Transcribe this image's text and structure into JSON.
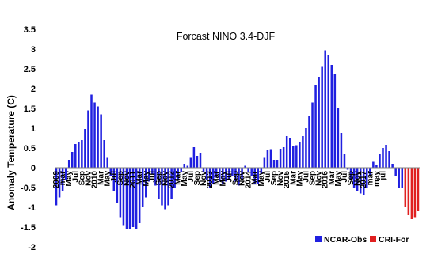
{
  "chart_data": {
    "type": "bar",
    "title": "Forcast NINO 3.4-DJF",
    "ylabel": "Anomaly Temperature (C)",
    "xlabel": "",
    "ylim": [
      -2,
      3.5
    ],
    "yticks": [
      "-2",
      "-1.5",
      "-1",
      "-0.5",
      "0",
      "0.5",
      "1",
      "1.5",
      "2",
      "2.5",
      "3",
      "3.5"
    ],
    "ytick_values": [
      -2,
      -1.5,
      -1,
      -0.5,
      0,
      0.5,
      1,
      1.5,
      2,
      2.5,
      3,
      3.5
    ],
    "grid": false,
    "legend": "bottom-right",
    "xtick_labels": [
      {
        "i": 0,
        "label": "2009"
      },
      {
        "i": 2,
        "label": "mar"
      },
      {
        "i": 4,
        "label": "May"
      },
      {
        "i": 6,
        "label": "Jul"
      },
      {
        "i": 8,
        "label": "Sep"
      },
      {
        "i": 10,
        "label": "Nov"
      },
      {
        "i": 12,
        "label": "2010"
      },
      {
        "i": 14,
        "label": "Mar"
      },
      {
        "i": 16,
        "label": "May"
      },
      {
        "i": 18,
        "label": "Jul"
      },
      {
        "i": 20,
        "label": "Sep"
      },
      {
        "i": 22,
        "label": "Nov"
      },
      {
        "i": 24,
        "label": "2011"
      },
      {
        "i": 26,
        "label": "Mar"
      },
      {
        "i": 28,
        "label": "May"
      },
      {
        "i": 30,
        "label": "Jul"
      },
      {
        "i": 32,
        "label": "Sep"
      },
      {
        "i": 34,
        "label": "Nov"
      },
      {
        "i": 36,
        "label": "2012"
      },
      {
        "i": 38,
        "label": "Mar"
      },
      {
        "i": 40,
        "label": "May"
      },
      {
        "i": 42,
        "label": "Jul"
      },
      {
        "i": 44,
        "label": "Sep"
      },
      {
        "i": 46,
        "label": "Nov"
      },
      {
        "i": 48,
        "label": "2013"
      },
      {
        "i": 50,
        "label": "Mar"
      },
      {
        "i": 52,
        "label": "May"
      },
      {
        "i": 54,
        "label": "Jul"
      },
      {
        "i": 56,
        "label": "Sep"
      },
      {
        "i": 58,
        "label": "Nov"
      },
      {
        "i": 60,
        "label": "2014"
      },
      {
        "i": 62,
        "label": "Mar"
      },
      {
        "i": 64,
        "label": "May"
      },
      {
        "i": 66,
        "label": "Jul"
      },
      {
        "i": 68,
        "label": "Sep"
      },
      {
        "i": 70,
        "label": "Nov"
      },
      {
        "i": 72,
        "label": "2015"
      },
      {
        "i": 74,
        "label": "Mar"
      },
      {
        "i": 76,
        "label": "May"
      },
      {
        "i": 78,
        "label": "Jul"
      },
      {
        "i": 80,
        "label": "Sep"
      },
      {
        "i": 82,
        "label": "Nov"
      },
      {
        "i": 84,
        "label": "2016"
      },
      {
        "i": 86,
        "label": "Mar"
      },
      {
        "i": 88,
        "label": "May"
      },
      {
        "i": 90,
        "label": "Jul"
      },
      {
        "i": 92,
        "label": "Sep"
      },
      {
        "i": 94,
        "label": "Nov"
      },
      {
        "i": 96,
        "label": "2017"
      },
      {
        "i": 98,
        "label": "mar"
      },
      {
        "i": 100,
        "label": "may"
      },
      {
        "i": 102,
        "label": "jul"
      }
    ],
    "series": [
      {
        "name": "NCAR-Obs",
        "color": "#2020e0",
        "values": [
          -0.95,
          -0.75,
          -0.6,
          -0.3,
          0.2,
          0.4,
          0.6,
          0.65,
          0.7,
          0.98,
          1.45,
          1.85,
          1.65,
          1.55,
          1.35,
          0.7,
          0.25,
          -0.2,
          -0.6,
          -0.9,
          -1.25,
          -1.45,
          -1.55,
          -1.55,
          -1.5,
          -1.55,
          -1.4,
          -1.0,
          -0.75,
          -0.35,
          -0.15,
          -0.45,
          -0.8,
          -0.95,
          -1.05,
          -0.95,
          -0.8,
          -0.5,
          -0.3,
          -0.1,
          0.1,
          0.05,
          0.25,
          0.52,
          0.3,
          0.38,
          -0.1,
          -0.3,
          -0.5,
          -0.4,
          -0.25,
          -0.35,
          -0.4,
          -0.35,
          -0.3,
          -0.2,
          -0.35,
          -0.45,
          -0.3,
          0.05,
          -0.1,
          -0.2,
          -0.4,
          -0.4,
          -0.15,
          0.25,
          0.46,
          0.47,
          0.2,
          0.2,
          0.48,
          0.52,
          0.8,
          0.75,
          0.55,
          0.57,
          0.65,
          0.8,
          1.0,
          1.3,
          1.65,
          2.1,
          2.3,
          2.55,
          2.97,
          2.85,
          2.6,
          2.38,
          1.5,
          0.88,
          0.35,
          -0.05,
          -0.3,
          -0.5,
          -0.6,
          -0.65,
          -0.7,
          -0.5,
          -0.2,
          0.15,
          0.08,
          0.35,
          0.5,
          0.58,
          0.42,
          0.1,
          -0.2,
          -0.5,
          -0.5
        ]
      },
      {
        "name": "CRI-For",
        "color": "#e02020",
        "values": [
          -1.0,
          -1.2,
          -1.3,
          -1.25,
          -1.1
        ]
      }
    ]
  }
}
